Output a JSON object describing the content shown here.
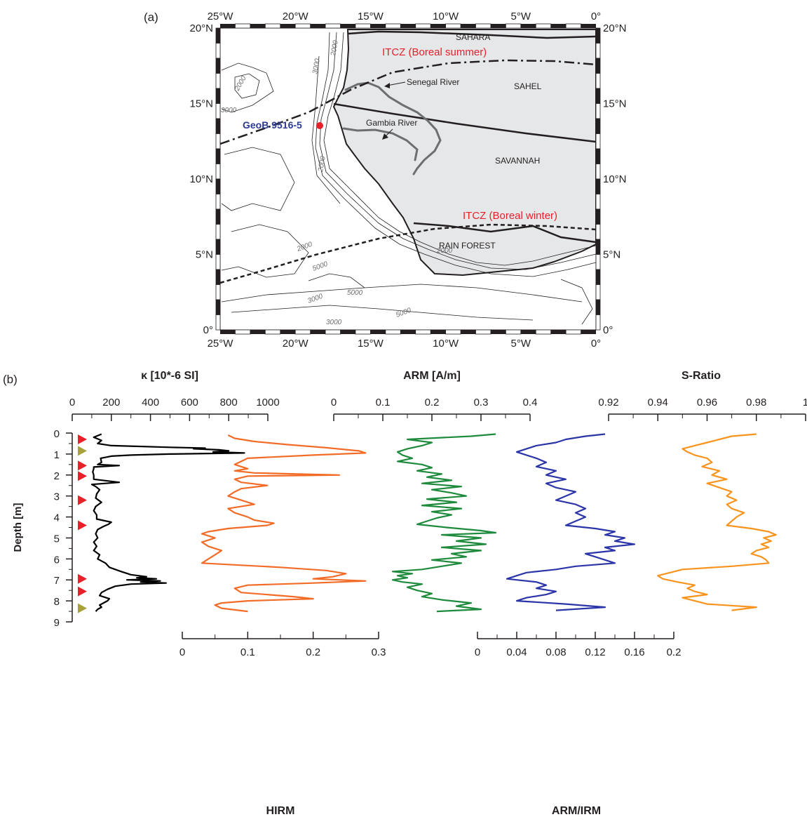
{
  "panel_a": {
    "label": "(a)",
    "lon_ticks": [
      "25°W",
      "20°W",
      "15°W",
      "10°W",
      "5°W",
      "0°"
    ],
    "lat_ticks": [
      "20°N",
      "15°N",
      "10°N",
      "5°N",
      "0°"
    ],
    "regions": [
      "SAHARA",
      "SAHEL",
      "SAVANNAH",
      "RAIN FOREST"
    ],
    "itcz_summer": "ITCZ (Boreal summer)",
    "itcz_winter": "ITCZ (Boreal winter)",
    "rivers": [
      "Senegal River",
      "Gambia River"
    ],
    "site": "GeoB 9516-5",
    "contours": [
      "3000",
      "2000",
      "2000",
      "2000",
      "2000",
      "3000",
      "2000",
      "5000",
      "5000",
      "5000",
      "3000",
      "3000"
    ],
    "colors": {
      "land": "#e6e7e8",
      "itcz": "#e8202a",
      "site_label": "#2b3a8f",
      "site": "#e8202a",
      "river": "#6d6e71"
    }
  },
  "panel_b": {
    "label": "(b)",
    "colors": {
      "kappa": "#000000",
      "hirm": "#f26c28",
      "arm": "#1e8a3c",
      "armirm": "#2b35a8",
      "sratio": "#f7941d",
      "marker_red": "#e8202a",
      "marker_olive": "#a9a23b"
    }
  },
  "chart_data": {
    "type": "line",
    "ylabel": "Depth [m]",
    "ylim": [
      9,
      0
    ],
    "y_ticks": [
      "0",
      "1",
      "2",
      "3",
      "4",
      "5",
      "6",
      "7",
      "8",
      "9"
    ],
    "markers": [
      {
        "depth": 0.3,
        "color": "red"
      },
      {
        "depth": 0.85,
        "color": "olive"
      },
      {
        "depth": 1.55,
        "color": "red"
      },
      {
        "depth": 2.05,
        "color": "red"
      },
      {
        "depth": 3.2,
        "color": "red"
      },
      {
        "depth": 4.4,
        "color": "red"
      },
      {
        "depth": 6.95,
        "color": "red"
      },
      {
        "depth": 7.55,
        "color": "red"
      },
      {
        "depth": 8.35,
        "color": "olive"
      }
    ],
    "series": [
      {
        "name": "κ [10*-6 SI]",
        "key": "kappa",
        "xlim": [
          0,
          1000
        ],
        "axis": "top",
        "ticks": [
          "0",
          "200",
          "400",
          "600",
          "800",
          "1000"
        ],
        "depth": [
          0.05,
          0.2,
          0.35,
          0.5,
          0.6,
          0.68,
          0.72,
          0.75,
          0.8,
          0.85,
          0.9,
          0.95,
          1.0,
          1.05,
          1.1,
          1.2,
          1.4,
          1.5,
          1.55,
          1.62,
          1.7,
          1.85,
          2.0,
          2.2,
          2.35,
          2.45,
          2.55,
          2.7,
          2.9,
          3.1,
          3.3,
          3.5,
          3.7,
          3.9,
          4.1,
          4.25,
          4.35,
          4.45,
          4.6,
          4.8,
          5.0,
          5.2,
          5.4,
          5.6,
          5.8,
          6.0,
          6.2,
          6.4,
          6.6,
          6.75,
          6.85,
          6.9,
          6.95,
          7.0,
          7.05,
          7.1,
          7.15,
          7.2,
          7.3,
          7.45,
          7.6,
          7.75,
          7.9,
          8.0,
          8.1,
          8.2,
          8.3,
          8.4,
          8.5
        ],
        "values": [
          150,
          110,
          150,
          130,
          200,
          500,
          680,
          620,
          750,
          800,
          720,
          880,
          500,
          300,
          200,
          145,
          150,
          130,
          240,
          110,
          110,
          105,
          110,
          110,
          240,
          100,
          120,
          140,
          125,
          120,
          150,
          120,
          110,
          125,
          125,
          200,
          185,
          160,
          130,
          120,
          130,
          110,
          125,
          110,
          140,
          130,
          170,
          190,
          250,
          300,
          380,
          330,
          430,
          280,
          450,
          350,
          480,
          300,
          220,
          180,
          150,
          140,
          190,
          180,
          160,
          140,
          150,
          130,
          120
        ]
      },
      {
        "name": "HIRM",
        "key": "hirm",
        "xlim": [
          0,
          0.3
        ],
        "axis": "bottom",
        "ticks": [
          "0",
          "0.1",
          "0.2",
          "0.3"
        ],
        "depth": [
          0.1,
          0.25,
          0.4,
          0.55,
          0.7,
          0.85,
          0.95,
          1.05,
          1.2,
          1.35,
          1.5,
          1.6,
          1.7,
          1.8,
          1.9,
          2.0,
          2.05,
          2.2,
          2.35,
          2.5,
          2.65,
          2.8,
          3.0,
          3.2,
          3.4,
          3.6,
          3.8,
          4.0,
          4.15,
          4.3,
          4.4,
          4.55,
          4.7,
          4.8,
          5.0,
          5.2,
          5.4,
          5.6,
          5.8,
          6.0,
          6.2,
          6.4,
          6.55,
          6.7,
          6.85,
          6.95,
          7.05,
          7.15,
          7.25,
          7.4,
          7.6,
          7.8,
          7.9,
          8.0,
          8.1,
          8.2,
          8.35,
          8.5
        ],
        "values": [
          0.07,
          0.08,
          0.11,
          0.16,
          0.22,
          0.27,
          0.28,
          0.2,
          0.1,
          0.09,
          0.08,
          0.09,
          0.1,
          0.08,
          0.11,
          0.24,
          0.1,
          0.08,
          0.09,
          0.13,
          0.09,
          0.08,
          0.07,
          0.09,
          0.11,
          0.07,
          0.08,
          0.1,
          0.11,
          0.14,
          0.13,
          0.07,
          0.04,
          0.03,
          0.05,
          0.03,
          0.04,
          0.06,
          0.05,
          0.04,
          0.03,
          0.15,
          0.22,
          0.25,
          0.23,
          0.2,
          0.28,
          0.2,
          0.1,
          0.08,
          0.09,
          0.17,
          0.2,
          0.1,
          0.06,
          0.05,
          0.06,
          0.1
        ]
      },
      {
        "name": "ARM [A/m]",
        "key": "arm",
        "xlim": [
          0,
          0.4
        ],
        "axis": "top",
        "ticks": [
          "0",
          "0.1",
          "0.2",
          "0.3",
          "0.4"
        ],
        "depth": [
          0.05,
          0.15,
          0.3,
          0.45,
          0.6,
          0.75,
          0.9,
          1.05,
          1.2,
          1.35,
          1.5,
          1.65,
          1.8,
          1.95,
          2.1,
          2.25,
          2.4,
          2.55,
          2.7,
          2.85,
          3.0,
          3.15,
          3.3,
          3.45,
          3.6,
          3.75,
          3.9,
          4.05,
          4.2,
          4.35,
          4.5,
          4.65,
          4.75,
          4.85,
          5.0,
          5.15,
          5.3,
          5.45,
          5.6,
          5.75,
          5.9,
          6.05,
          6.2,
          6.35,
          6.5,
          6.6,
          6.7,
          6.8,
          6.9,
          7.0,
          7.1,
          7.2,
          7.35,
          7.5,
          7.65,
          7.8,
          7.95,
          8.1,
          8.25,
          8.4,
          8.5
        ],
        "values": [
          0.33,
          0.28,
          0.15,
          0.2,
          0.18,
          0.15,
          0.13,
          0.14,
          0.16,
          0.13,
          0.18,
          0.2,
          0.17,
          0.22,
          0.19,
          0.24,
          0.18,
          0.26,
          0.2,
          0.24,
          0.27,
          0.19,
          0.25,
          0.18,
          0.26,
          0.2,
          0.24,
          0.21,
          0.19,
          0.17,
          0.23,
          0.3,
          0.33,
          0.22,
          0.3,
          0.25,
          0.31,
          0.22,
          0.3,
          0.24,
          0.27,
          0.2,
          0.26,
          0.22,
          0.18,
          0.12,
          0.16,
          0.13,
          0.15,
          0.12,
          0.14,
          0.18,
          0.15,
          0.17,
          0.2,
          0.18,
          0.22,
          0.28,
          0.25,
          0.3,
          0.21
        ]
      },
      {
        "name": "ARM/IRM",
        "key": "armirm",
        "xlim": [
          0,
          0.2
        ],
        "axis": "bottom",
        "ticks": [
          "0",
          "0.04",
          "0.08",
          "0.12",
          "0.16",
          "0.2"
        ],
        "depth": [
          0.05,
          0.15,
          0.3,
          0.45,
          0.6,
          0.75,
          0.9,
          1.05,
          1.2,
          1.4,
          1.6,
          1.8,
          2.0,
          2.2,
          2.4,
          2.6,
          2.8,
          3.0,
          3.2,
          3.4,
          3.6,
          3.8,
          4.0,
          4.2,
          4.4,
          4.55,
          4.7,
          4.85,
          5.0,
          5.15,
          5.3,
          5.45,
          5.6,
          5.75,
          5.9,
          6.05,
          6.2,
          6.35,
          6.5,
          6.65,
          6.8,
          6.95,
          7.1,
          7.25,
          7.4,
          7.55,
          7.7,
          7.85,
          8.0,
          8.15,
          8.3,
          8.45
        ],
        "values": [
          0.13,
          0.11,
          0.09,
          0.08,
          0.06,
          0.05,
          0.04,
          0.05,
          0.06,
          0.07,
          0.06,
          0.08,
          0.07,
          0.09,
          0.07,
          0.08,
          0.1,
          0.09,
          0.08,
          0.1,
          0.11,
          0.1,
          0.11,
          0.1,
          0.09,
          0.12,
          0.14,
          0.13,
          0.15,
          0.14,
          0.16,
          0.13,
          0.14,
          0.11,
          0.12,
          0.13,
          0.14,
          0.1,
          0.08,
          0.05,
          0.04,
          0.03,
          0.06,
          0.07,
          0.06,
          0.08,
          0.07,
          0.05,
          0.04,
          0.09,
          0.13,
          0.08
        ]
      },
      {
        "name": "S-Ratio",
        "key": "sratio",
        "xlim": [
          0.92,
          1.0
        ],
        "axis": "top",
        "ticks": [
          "0.92",
          "0.94",
          "0.96",
          "0.98",
          "1"
        ],
        "depth": [
          0.05,
          0.15,
          0.3,
          0.45,
          0.6,
          0.75,
          0.9,
          1.05,
          1.2,
          1.4,
          1.6,
          1.8,
          2.0,
          2.2,
          2.4,
          2.6,
          2.8,
          3.0,
          3.2,
          3.4,
          3.6,
          3.8,
          4.0,
          4.2,
          4.4,
          4.55,
          4.7,
          4.85,
          5.0,
          5.15,
          5.3,
          5.45,
          5.6,
          5.75,
          5.9,
          6.05,
          6.2,
          6.35,
          6.5,
          6.65,
          6.8,
          6.95,
          7.1,
          7.25,
          7.4,
          7.55,
          7.7,
          7.85,
          8.0,
          8.15,
          8.3,
          8.45
        ],
        "values": [
          0.98,
          0.97,
          0.965,
          0.96,
          0.955,
          0.95,
          0.952,
          0.955,
          0.96,
          0.962,
          0.958,
          0.965,
          0.962,
          0.968,
          0.96,
          0.965,
          0.97,
          0.968,
          0.972,
          0.968,
          0.97,
          0.975,
          0.972,
          0.97,
          0.968,
          0.978,
          0.985,
          0.988,
          0.983,
          0.986,
          0.982,
          0.985,
          0.98,
          0.978,
          0.982,
          0.984,
          0.985,
          0.97,
          0.95,
          0.945,
          0.94,
          0.942,
          0.948,
          0.955,
          0.952,
          0.955,
          0.96,
          0.95,
          0.955,
          0.96,
          0.98,
          0.97
        ]
      }
    ]
  }
}
